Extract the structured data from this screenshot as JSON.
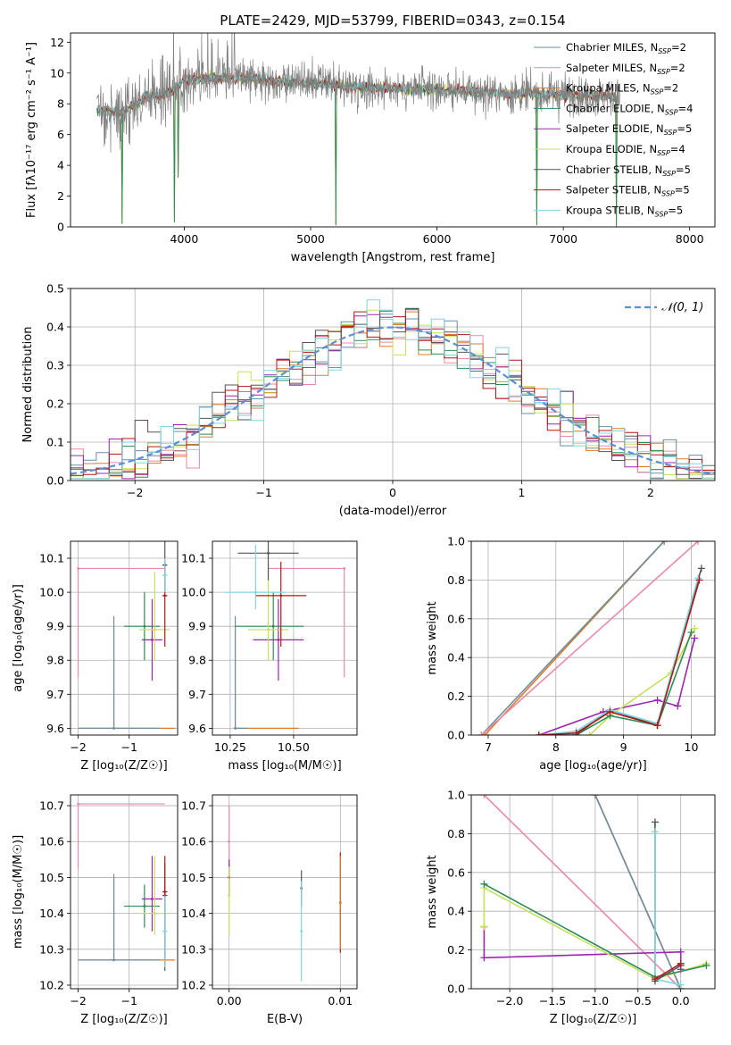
{
  "figure_title": "PLATE=2429, MJD=53799, FIBERID=0343, z=0.154",
  "colors": {
    "Chabrier MILES": "#6b8fa3",
    "Salpeter MILES": "#e88aa8",
    "Kroupa MILES": "#e07b2a",
    "Chabrier ELODIE": "#2e8b57",
    "Salpeter ELODIE": "#9b27af",
    "Kroupa ELODIE": "#c6e05a",
    "Chabrier STELIB": "#555555",
    "Salpeter STELIB": "#b01818",
    "Kroupa STELIB": "#7fd6e0",
    "gauss": "#5b8fd6",
    "grid": "#b0b0b0"
  },
  "legend_models": [
    {
      "pre": "Chabrier MILES, N",
      "sub": "SSP",
      "post": "=2"
    },
    {
      "pre": "Salpeter MILES, N",
      "sub": "SSP",
      "post": "=2"
    },
    {
      "pre": "Kroupa MILES, N",
      "sub": "SSP",
      "post": "=2"
    },
    {
      "pre": "Chabrier ELODIE, N",
      "sub": "SSP",
      "post": "=4"
    },
    {
      "pre": "Salpeter ELODIE, N",
      "sub": "SSP",
      "post": "=5"
    },
    {
      "pre": "Kroupa ELODIE, N",
      "sub": "SSP",
      "post": "=4"
    },
    {
      "pre": "Chabrier STELIB, N",
      "sub": "SSP",
      "post": "=5"
    },
    {
      "pre": "Salpeter STELIB, N",
      "sub": "SSP",
      "post": "=5"
    },
    {
      "pre": "Kroupa STELIB, N",
      "sub": "SSP",
      "post": "=5"
    }
  ],
  "legend_gauss": "𝒩(0, 1)",
  "chart_data": [
    {
      "type": "line",
      "id": "spectrum",
      "title": "PLATE=2429, MJD=53799, FIBERID=0343, z=0.154",
      "xlabel": "wavelength [Angstrom, rest frame]",
      "ylabel": "Flux [fλ10⁻¹⁷ erg cm⁻² s⁻¹ A⁻¹]",
      "xlim": [
        3100,
        8200
      ],
      "ylim": [
        0,
        12.6
      ],
      "xticks": [
        4000,
        5000,
        6000,
        7000,
        8000
      ],
      "yticks": [
        0,
        2,
        4,
        6,
        8,
        10,
        12
      ],
      "grid": false,
      "legend": "right",
      "continuum": {
        "x": [
          3310,
          3500,
          3700,
          3900,
          4000,
          4300,
          4600,
          5000,
          5400,
          6000,
          6500,
          7000,
          7400
        ],
        "y": [
          7.6,
          7.4,
          8.4,
          8.8,
          9.6,
          9.7,
          9.6,
          9.3,
          9.1,
          8.9,
          8.7,
          8.6,
          8.5
        ]
      },
      "dips": [
        {
          "x": 3510,
          "y": 0.2
        },
        {
          "x": 3920,
          "y": 0.3
        },
        {
          "x": 5200,
          "y": 0.1
        },
        {
          "x": 6790,
          "y": 0.1
        },
        {
          "x": 7420,
          "y": 0.0
        },
        {
          "x": 3950,
          "y": 3.2
        }
      ]
    },
    {
      "type": "bar",
      "id": "residuals",
      "xlabel": "(data-model)/error",
      "ylabel": "Normed distribution",
      "xlim": [
        -2.5,
        2.5
      ],
      "ylim": [
        0,
        0.5
      ],
      "xticks": [
        -2,
        -1,
        0,
        1,
        2
      ],
      "yticks": [
        0.0,
        0.1,
        0.2,
        0.3,
        0.4,
        0.5
      ],
      "grid": true,
      "legend": "top-right",
      "bin_width": 0.1,
      "gaussian": {
        "mean": 0,
        "sigma": 1
      }
    },
    {
      "type": "scatter",
      "id": "age_vs_Z",
      "xlabel": "Z [log₁₀(Z/Z☉)]",
      "ylabel": "age  [log₁₀(age/yr)]",
      "xlim": [
        -2.15,
        -0.05
      ],
      "ylim": [
        9.58,
        10.15
      ],
      "xticks": [
        -2,
        -1
      ],
      "yticks": [
        9.6,
        9.7,
        9.8,
        9.9,
        10.0,
        10.1
      ],
      "grid": true,
      "points": [
        {
          "m": "Salpeter MILES",
          "x": -2.0,
          "y": 10.07,
          "xerr": [
            0,
            1.7
          ],
          "yerr": [
            0.32,
            0
          ]
        },
        {
          "m": "Kroupa MILES",
          "x": -1.3,
          "y": 9.6,
          "xerr": [
            0.7,
            1.2
          ],
          "yerr": [
            0,
            0.3
          ]
        },
        {
          "m": "Chabrier MILES",
          "x": -1.3,
          "y": 9.6,
          "xerr": [
            0.7,
            0.9
          ],
          "yerr": [
            0,
            0.33
          ]
        },
        {
          "m": "Chabrier ELODIE",
          "x": -0.7,
          "y": 9.9,
          "xerr": [
            0.4,
            0.3
          ],
          "yerr": [
            0.1,
            0.1
          ]
        },
        {
          "m": "Salpeter ELODIE",
          "x": -0.55,
          "y": 9.86,
          "xerr": [
            0.2,
            0.2
          ],
          "yerr": [
            0.12,
            0.12
          ]
        },
        {
          "m": "Kroupa ELODIE",
          "x": -0.5,
          "y": 9.89,
          "xerr": [
            0.3,
            0.3
          ],
          "yerr": [
            0.09,
            0.17
          ]
        },
        {
          "m": "Chabrier STELIB",
          "x": -0.3,
          "y": 10.08,
          "xerr": [
            0.05,
            0.05
          ],
          "yerr": [
            0.08,
            0.07
          ]
        },
        {
          "m": "Salpeter STELIB",
          "x": -0.3,
          "y": 9.99,
          "xerr": [
            0.05,
            0.05
          ],
          "yerr": [
            0.15,
            0.1
          ]
        },
        {
          "m": "Kroupa STELIB",
          "x": -0.3,
          "y": 10.05,
          "xerr": [
            0.05,
            0.05
          ],
          "yerr": [
            0.05,
            0.05
          ]
        }
      ]
    },
    {
      "type": "scatter",
      "id": "age_vs_mass",
      "xlabel": "mass [log₁₀(M/M☉)]",
      "ylabel": "",
      "xlim": [
        10.18,
        10.75
      ],
      "ylim": [
        9.58,
        10.15
      ],
      "xticks": [
        10.25,
        10.5
      ],
      "yticks": [
        9.6,
        9.7,
        9.8,
        9.9,
        10.0,
        10.1
      ],
      "grid": true,
      "points": [
        {
          "m": "Salpeter MILES",
          "x": 10.7,
          "y": 10.07,
          "xerr": [
            0.3,
            0
          ],
          "yerr": [
            0.32,
            0
          ]
        },
        {
          "m": "Kroupa MILES",
          "x": 10.27,
          "y": 9.6,
          "xerr": [
            0,
            0.25
          ],
          "yerr": [
            0,
            0.3
          ]
        },
        {
          "m": "Chabrier MILES",
          "x": 10.27,
          "y": 9.6,
          "xerr": [
            0,
            0.05
          ],
          "yerr": [
            0,
            0.33
          ]
        },
        {
          "m": "Chabrier ELODIE",
          "x": 10.42,
          "y": 9.9,
          "xerr": [
            0.15,
            0.12
          ],
          "yerr": [
            0.1,
            0.1
          ]
        },
        {
          "m": "Salpeter ELODIE",
          "x": 10.44,
          "y": 9.86,
          "xerr": [
            0.1,
            0.1
          ],
          "yerr": [
            0.12,
            0.12
          ]
        },
        {
          "m": "Kroupa ELODIE",
          "x": 10.4,
          "y": 9.89,
          "xerr": [
            0.08,
            0.08
          ],
          "yerr": [
            0.09,
            0.17
          ]
        },
        {
          "m": "Chabrier STELIB",
          "x": 10.4,
          "y": 10.115,
          "xerr": [
            0.12,
            0.12
          ],
          "yerr": [
            0.08,
            0.07
          ]
        },
        {
          "m": "Salpeter STELIB",
          "x": 10.45,
          "y": 9.99,
          "xerr": [
            0.1,
            0.1
          ],
          "yerr": [
            0.15,
            0.1
          ]
        },
        {
          "m": "Kroupa STELIB",
          "x": 10.35,
          "y": 10.0,
          "xerr": [
            0.12,
            0.12
          ],
          "yerr": [
            0.05,
            0.14
          ]
        }
      ]
    },
    {
      "type": "line",
      "id": "mass_weight_vs_age",
      "xlabel": "age  [log₁₀(age/yr)]",
      "ylabel": "mass weight",
      "xlim": [
        6.75,
        10.35
      ],
      "ylim": [
        0,
        1.0
      ],
      "xticks": [
        7,
        8,
        9,
        10
      ],
      "yticks": [
        0.0,
        0.2,
        0.4,
        0.6,
        0.8,
        1.0
      ],
      "grid": true,
      "series": [
        {
          "m": "Kroupa MILES",
          "x": [
            6.95,
            9.6
          ],
          "y": [
            0.0,
            1.0
          ]
        },
        {
          "m": "Chabrier MILES",
          "x": [
            6.9,
            9.6
          ],
          "y": [
            0.0,
            1.0
          ]
        },
        {
          "m": "Salpeter MILES",
          "x": [
            6.9,
            10.1
          ],
          "y": [
            0.0,
            1.0
          ]
        },
        {
          "m": "Salpeter ELODIE",
          "x": [
            7.75,
            8.7,
            9.5,
            9.8,
            10.05
          ],
          "y": [
            0.0,
            0.12,
            0.18,
            0.15,
            0.5
          ]
        },
        {
          "m": "Kroupa ELODIE",
          "x": [
            8.5,
            8.8,
            9.7,
            10.05
          ],
          "y": [
            0.0,
            0.1,
            0.32,
            0.55
          ]
        },
        {
          "m": "Chabrier ELODIE",
          "x": [
            8.3,
            8.8,
            9.5,
            10.0
          ],
          "y": [
            0.0,
            0.1,
            0.05,
            0.53
          ]
        },
        {
          "m": "Chabrier STELIB",
          "x": [
            7.75,
            8.3,
            8.8,
            9.5,
            10.15
          ],
          "y": [
            0.0,
            0.0,
            0.13,
            0.05,
            0.86
          ]
        },
        {
          "m": "Kroupa STELIB",
          "x": [
            7.75,
            8.3,
            8.8,
            9.5,
            10.1
          ],
          "y": [
            0.0,
            0.02,
            0.13,
            0.06,
            0.81
          ]
        },
        {
          "m": "Salpeter STELIB",
          "x": [
            7.75,
            8.3,
            8.8,
            9.5,
            10.12
          ],
          "y": [
            0.0,
            0.01,
            0.12,
            0.05,
            0.8
          ]
        }
      ]
    },
    {
      "type": "scatter",
      "id": "mass_vs_Z",
      "xlabel": "Z [log₁₀(Z/Z☉)]",
      "ylabel": "mass [log₁₀(M/M☉)]",
      "xlim": [
        -2.15,
        -0.05
      ],
      "ylim": [
        10.19,
        10.73
      ],
      "xticks": [
        -2,
        -1
      ],
      "yticks": [
        10.2,
        10.3,
        10.4,
        10.5,
        10.6,
        10.7
      ],
      "grid": true,
      "points": [
        {
          "m": "Salpeter MILES",
          "x": -2.0,
          "y": 10.705,
          "xerr": [
            0,
            1.7
          ],
          "yerr": [
            0.18,
            0
          ]
        },
        {
          "m": "Kroupa MILES",
          "x": -1.3,
          "y": 10.27,
          "xerr": [
            0.7,
            1.2
          ],
          "yerr": [
            0,
            0.23
          ]
        },
        {
          "m": "Chabrier MILES",
          "x": -1.3,
          "y": 10.27,
          "xerr": [
            0.7,
            0.9
          ],
          "yerr": [
            0,
            0.24
          ]
        },
        {
          "m": "Chabrier ELODIE",
          "x": -0.7,
          "y": 10.42,
          "xerr": [
            0.4,
            0.3
          ],
          "yerr": [
            0.06,
            0.06
          ]
        },
        {
          "m": "Salpeter ELODIE",
          "x": -0.55,
          "y": 10.44,
          "xerr": [
            0.2,
            0.2
          ],
          "yerr": [
            0.09,
            0.12
          ]
        },
        {
          "m": "Kroupa ELODIE",
          "x": -0.5,
          "y": 10.4,
          "xerr": [
            0.3,
            0.3
          ],
          "yerr": [
            0.06,
            0.16
          ]
        },
        {
          "m": "Chabrier STELIB",
          "x": -0.3,
          "y": 10.45,
          "xerr": [
            0.05,
            0.05
          ],
          "yerr": [
            0.21,
            0.09
          ]
        },
        {
          "m": "Salpeter STELIB",
          "x": -0.3,
          "y": 10.46,
          "xerr": [
            0.05,
            0.05
          ],
          "yerr": [
            0.2,
            0.1
          ]
        },
        {
          "m": "Kroupa STELIB",
          "x": -0.3,
          "y": 10.35,
          "xerr": [
            0.05,
            0.05
          ],
          "yerr": [
            0.1,
            0.1
          ]
        }
      ]
    },
    {
      "type": "scatter",
      "id": "mass_vs_EBV",
      "xlabel": "E(B-V)",
      "ylabel": "",
      "xlim": [
        -0.0015,
        0.0115
      ],
      "ylim": [
        10.19,
        10.73
      ],
      "xticks": [
        0.0,
        0.01
      ],
      "yticks": [
        10.2,
        10.3,
        10.4,
        10.5,
        10.6,
        10.7
      ],
      "grid": true,
      "points": [
        {
          "m": "Salpeter MILES",
          "x": 0.0,
          "y": 10.6,
          "yerr": [
            0.08,
            0.1
          ]
        },
        {
          "m": "Chabrier MILES",
          "x": 0.0,
          "y": 10.5,
          "yerr": [
            0.04,
            0.04
          ]
        },
        {
          "m": "Salpeter ELODIE",
          "x": 0.0,
          "y": 10.5,
          "yerr": [
            0.05,
            0.05
          ]
        },
        {
          "m": "Kroupa ELODIE",
          "x": 0.0,
          "y": 10.45,
          "yerr": [
            0.11,
            0.08
          ]
        },
        {
          "m": "Chabrier STELIB",
          "x": 0.0065,
          "y": 10.47,
          "yerr": [
            0.05,
            0.05
          ]
        },
        {
          "m": "Kroupa STELIB",
          "x": 0.0065,
          "y": 10.35,
          "yerr": [
            0.14,
            0.14
          ]
        },
        {
          "m": "Salpeter STELIB",
          "x": 0.01,
          "y": 10.43,
          "yerr": [
            0.14,
            0.14
          ]
        },
        {
          "m": "Kroupa MILES",
          "x": 0.01,
          "y": 10.43,
          "yerr": [
            0.13,
            0.13
          ]
        }
      ]
    },
    {
      "type": "line",
      "id": "mass_weight_vs_Z",
      "xlabel": "Z [log₁₀(Z/Z☉)]",
      "ylabel": "mass weight",
      "xlim": [
        -2.45,
        0.4
      ],
      "ylim": [
        0,
        1.0
      ],
      "xticks": [
        -2.0,
        -1.5,
        -1.0,
        -0.5,
        0.0
      ],
      "yticks": [
        0.0,
        0.2,
        0.4,
        0.6,
        0.8,
        1.0
      ],
      "grid": true,
      "series": [
        {
          "m": "Salpeter MILES",
          "x": [
            -2.3,
            0.0
          ],
          "y": [
            1.0,
            0.0
          ]
        },
        {
          "m": "Kroupa MILES",
          "x": [
            -1.0,
            0.0
          ],
          "y": [
            1.0,
            0.0
          ]
        },
        {
          "m": "Chabrier MILES",
          "x": [
            -1.0,
            0.0
          ],
          "y": [
            1.0,
            0.0
          ]
        },
        {
          "m": "Salpeter ELODIE",
          "x": [
            -2.3,
            -2.3,
            0.0,
            0.0
          ],
          "y": [
            0.32,
            0.16,
            0.19,
            0.1
          ]
        },
        {
          "m": "Kroupa ELODIE",
          "x": [
            -2.3,
            -2.3,
            -0.3,
            0.3
          ],
          "y": [
            0.32,
            0.52,
            0.05,
            0.13
          ]
        },
        {
          "m": "Chabrier ELODIE",
          "x": [
            -2.3,
            -0.3,
            0.3
          ],
          "y": [
            0.54,
            0.06,
            0.12
          ]
        },
        {
          "m": "Chabrier STELIB",
          "x": [
            -0.3,
            -0.3,
            0.0
          ],
          "y": [
            0.86,
            0.04,
            0.12
          ]
        },
        {
          "m": "Kroupa STELIB",
          "x": [
            -0.3,
            -0.3,
            0.0
          ],
          "y": [
            0.81,
            0.05,
            0.02
          ]
        },
        {
          "m": "Salpeter STELIB",
          "x": [
            -0.3,
            0.0
          ],
          "y": [
            0.05,
            0.13
          ]
        }
      ]
    }
  ]
}
